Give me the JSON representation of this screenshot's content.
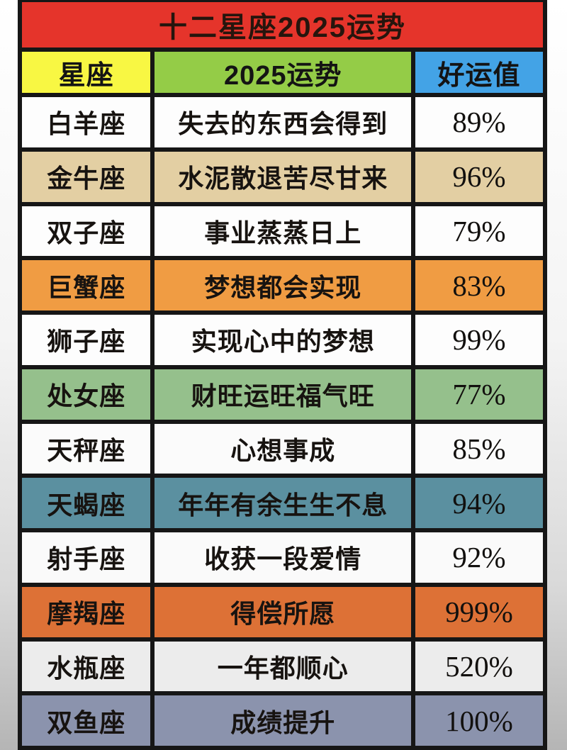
{
  "title": {
    "text": "十二星座2025运势",
    "bg": "#e5342b"
  },
  "columns": [
    {
      "label": "星座",
      "bg": "#f8f743"
    },
    {
      "label": "2025运势",
      "bg": "#94cc47"
    },
    {
      "label": "好运值",
      "bg": "#43a3e6"
    }
  ],
  "rows": [
    {
      "sign": "白羊座",
      "fortune": "失去的东西会得到",
      "luck": "89%",
      "bg": "#fdfdfd"
    },
    {
      "sign": "金牛座",
      "fortune": "水泥散退苦尽甘来",
      "luck": "96%",
      "bg": "#e3cfa3"
    },
    {
      "sign": "双子座",
      "fortune": "事业蒸蒸日上",
      "luck": "79%",
      "bg": "#fdfdfd"
    },
    {
      "sign": "巨蟹座",
      "fortune": "梦想都会实现",
      "luck": "83%",
      "bg": "#f09c43"
    },
    {
      "sign": "狮子座",
      "fortune": "实现心中的梦想",
      "luck": "99%",
      "bg": "#fdfdfd"
    },
    {
      "sign": "处女座",
      "fortune": "财旺运旺福气旺",
      "luck": "77%",
      "bg": "#95c08c"
    },
    {
      "sign": "天秤座",
      "fortune": "心想事成",
      "luck": "85%",
      "bg": "#fbfbfb"
    },
    {
      "sign": "天蝎座",
      "fortune": "年年有余生生不息",
      "luck": "94%",
      "bg": "#5b90a0"
    },
    {
      "sign": "射手座",
      "fortune": "收获一段爱情",
      "luck": "92%",
      "bg": "#fafafa"
    },
    {
      "sign": "摩羯座",
      "fortune": "得偿所愿",
      "luck": "999%",
      "bg": "#dd7136"
    },
    {
      "sign": "水瓶座",
      "fortune": "一年都顺心",
      "luck": "520%",
      "bg": "#ececec"
    },
    {
      "sign": "双鱼座",
      "fortune": "成绩提升",
      "luck": "100%",
      "bg": "#8b93ad"
    }
  ],
  "chart_data": {
    "type": "table",
    "title": "十二星座2025运势",
    "columns": [
      "星座",
      "2025运势",
      "好运值"
    ],
    "rows": [
      [
        "白羊座",
        "失去的东西会得到",
        "89%"
      ],
      [
        "金牛座",
        "水泥散退苦尽甘来",
        "96%"
      ],
      [
        "双子座",
        "事业蒸蒸日上",
        "79%"
      ],
      [
        "巨蟹座",
        "梦想都会实现",
        "83%"
      ],
      [
        "狮子座",
        "实现心中的梦想",
        "99%"
      ],
      [
        "处女座",
        "财旺运旺福气旺",
        "77%"
      ],
      [
        "天秤座",
        "心想事成",
        "85%"
      ],
      [
        "天蝎座",
        "年年有余生生不息",
        "94%"
      ],
      [
        "射手座",
        "收获一段爱情",
        "92%"
      ],
      [
        "摩羯座",
        "得偿所愿",
        "999%"
      ],
      [
        "水瓶座",
        "一年都顺心",
        "520%"
      ],
      [
        "双鱼座",
        "成绩提升",
        "100%"
      ]
    ]
  }
}
